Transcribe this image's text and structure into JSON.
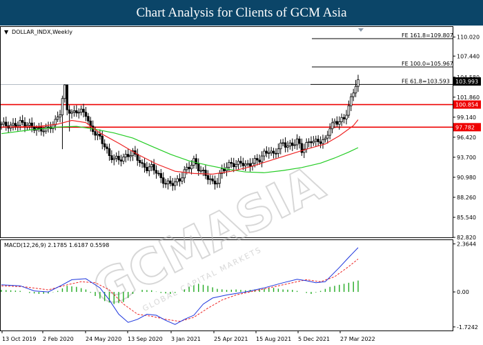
{
  "header": {
    "title": "Chart Analysis for Clients of GCM Asia"
  },
  "watermark": {
    "brand": "GCMASIA",
    "tagline": "GLOBAL CAPITAL MARKETS"
  },
  "chart_data": [
    {
      "type": "candlestick",
      "symbol_label": "DOLLAR_INDX,Weekly",
      "ylim": [
        82.82,
        111.4
      ],
      "y_ticks": [
        "110.020",
        "107.440",
        "104.580",
        "101.860",
        "99.140",
        "96.420",
        "93.700",
        "90.980",
        "88.260",
        "85.540",
        "82.820"
      ],
      "x_labels": [
        "13 Oct 2019",
        "2 Feb 2020",
        "24 May 2020",
        "13 Sep 2020",
        "3 Jan 2021",
        "25 Apr 2021",
        "15 Aug 2021",
        "5 Dec 2021",
        "27 Mar 2022"
      ],
      "last_price": "103.993",
      "close_path": [
        [
          0,
          98.2
        ],
        [
          4,
          97.9
        ],
        [
          8,
          98.4
        ],
        [
          12,
          98.0
        ],
        [
          16,
          97.4
        ],
        [
          20,
          97.6
        ],
        [
          23,
          98.5
        ],
        [
          25,
          99.8
        ],
        [
          26,
          101.6
        ],
        [
          27,
          103.2
        ],
        [
          28,
          100.3
        ],
        [
          30,
          99.6
        ],
        [
          32,
          100.0
        ],
        [
          34,
          99.9
        ],
        [
          36,
          99.6
        ],
        [
          38,
          97.6
        ],
        [
          40,
          97.0
        ],
        [
          42,
          96.3
        ],
        [
          44,
          95.3
        ],
        [
          46,
          93.8
        ],
        [
          48,
          93.6
        ],
        [
          50,
          93.4
        ],
        [
          52,
          93.6
        ],
        [
          54,
          94.0
        ],
        [
          56,
          94.3
        ],
        [
          58,
          93.6
        ],
        [
          60,
          92.5
        ],
        [
          62,
          92.2
        ],
        [
          64,
          92.4
        ],
        [
          66,
          91.8
        ],
        [
          68,
          90.7
        ],
        [
          70,
          90.2
        ],
        [
          72,
          90.1
        ],
        [
          74,
          90.3
        ],
        [
          76,
          90.6
        ],
        [
          78,
          91.8
        ],
        [
          80,
          92.4
        ],
        [
          82,
          93.2
        ],
        [
          84,
          92.2
        ],
        [
          86,
          91.6
        ],
        [
          88,
          91.0
        ],
        [
          90,
          90.2
        ],
        [
          92,
          90.4
        ],
        [
          94,
          92.0
        ],
        [
          96,
          92.4
        ],
        [
          98,
          92.9
        ],
        [
          100,
          92.6
        ],
        [
          102,
          93.1
        ],
        [
          104,
          92.5
        ],
        [
          106,
          92.8
        ],
        [
          108,
          93.2
        ],
        [
          110,
          93.4
        ],
        [
          112,
          94.2
        ],
        [
          114,
          94.6
        ],
        [
          116,
          94.0
        ],
        [
          118,
          95.0
        ],
        [
          120,
          95.6
        ],
        [
          122,
          95.2
        ],
        [
          124,
          95.4
        ],
        [
          126,
          96.0
        ],
        [
          128,
          94.6
        ],
        [
          130,
          95.4
        ],
        [
          132,
          96.0
        ],
        [
          134,
          95.8
        ],
        [
          136,
          95.9
        ],
        [
          138,
          96.0
        ],
        [
          140,
          97.8
        ],
        [
          142,
          98.4
        ],
        [
          144,
          98.6
        ],
        [
          146,
          98.9
        ],
        [
          148,
          100.6
        ],
        [
          150,
          102.6
        ],
        [
          151,
          103.6
        ],
        [
          152,
          103.99
        ]
      ],
      "high_spikes": [
        [
          27,
          103.6
        ],
        [
          28,
          103.0
        ],
        [
          151,
          104.2
        ]
      ],
      "low_spikes": [
        [
          26,
          94.8
        ],
        [
          29,
          97.2
        ]
      ],
      "ma_red": [
        [
          0,
          97.8
        ],
        [
          16,
          97.9
        ],
        [
          24,
          98.2
        ],
        [
          30,
          98.7
        ],
        [
          36,
          98.4
        ],
        [
          42,
          97.0
        ],
        [
          50,
          95.6
        ],
        [
          58,
          94.1
        ],
        [
          66,
          92.8
        ],
        [
          74,
          91.8
        ],
        [
          82,
          91.5
        ],
        [
          90,
          91.4
        ],
        [
          98,
          91.8
        ],
        [
          106,
          92.4
        ],
        [
          114,
          93.2
        ],
        [
          122,
          94.0
        ],
        [
          130,
          94.8
        ],
        [
          138,
          95.5
        ],
        [
          144,
          96.6
        ],
        [
          150,
          98.0
        ],
        [
          152,
          98.8
        ]
      ],
      "ma_green": [
        [
          0,
          96.9
        ],
        [
          12,
          97.4
        ],
        [
          24,
          97.8
        ],
        [
          32,
          97.9
        ],
        [
          40,
          97.5
        ],
        [
          48,
          97.0
        ],
        [
          56,
          96.3
        ],
        [
          64,
          95.2
        ],
        [
          72,
          94.1
        ],
        [
          80,
          93.2
        ],
        [
          88,
          92.6
        ],
        [
          96,
          92.1
        ],
        [
          104,
          91.7
        ],
        [
          112,
          91.6
        ],
        [
          120,
          91.9
        ],
        [
          128,
          92.3
        ],
        [
          136,
          92.9
        ],
        [
          142,
          93.6
        ],
        [
          148,
          94.4
        ],
        [
          152,
          95.0
        ]
      ],
      "levels": [
        {
          "label": "FE 161.8=109.807",
          "value": 109.807,
          "color": "#000000"
        },
        {
          "label": "FE 100.0=105.967",
          "value": 105.967,
          "color": "#000000"
        },
        {
          "label": "FE 61.8=103.593",
          "value": 103.593,
          "color": "#000000"
        },
        {
          "label": "100.854",
          "value": 100.854,
          "color": "#ee0000"
        },
        {
          "label": "97.782",
          "value": 97.782,
          "color": "#ee0000"
        }
      ]
    },
    {
      "type": "macd",
      "label": "MACD(12,26,9) 2.1785 1.6187 0.5598",
      "ylim": [
        -1.9,
        2.55
      ],
      "y_ticks": [
        "2.3644",
        "0.00",
        "-1.7242"
      ],
      "macd_line": [
        [
          0,
          0.35
        ],
        [
          8,
          0.3
        ],
        [
          14,
          0.05
        ],
        [
          20,
          0.0
        ],
        [
          26,
          0.35
        ],
        [
          30,
          0.6
        ],
        [
          36,
          0.65
        ],
        [
          42,
          0.2
        ],
        [
          46,
          -0.4
        ],
        [
          50,
          -1.1
        ],
        [
          54,
          -1.5
        ],
        [
          58,
          -1.35
        ],
        [
          62,
          -1.1
        ],
        [
          66,
          -1.15
        ],
        [
          70,
          -1.4
        ],
        [
          74,
          -1.6
        ],
        [
          78,
          -1.35
        ],
        [
          82,
          -1.15
        ],
        [
          86,
          -0.6
        ],
        [
          90,
          -0.3
        ],
        [
          96,
          -0.15
        ],
        [
          104,
          0.0
        ],
        [
          112,
          0.2
        ],
        [
          120,
          0.45
        ],
        [
          126,
          0.62
        ],
        [
          130,
          0.55
        ],
        [
          134,
          0.45
        ],
        [
          138,
          0.5
        ],
        [
          144,
          1.2
        ],
        [
          148,
          1.7
        ],
        [
          152,
          2.18
        ]
      ],
      "signal_line": [
        [
          0,
          0.3
        ],
        [
          10,
          0.25
        ],
        [
          20,
          0.1
        ],
        [
          28,
          0.35
        ],
        [
          34,
          0.5
        ],
        [
          40,
          0.45
        ],
        [
          46,
          0.1
        ],
        [
          52,
          -0.6
        ],
        [
          58,
          -1.1
        ],
        [
          64,
          -1.2
        ],
        [
          70,
          -1.35
        ],
        [
          76,
          -1.45
        ],
        [
          82,
          -1.25
        ],
        [
          88,
          -0.8
        ],
        [
          94,
          -0.4
        ],
        [
          100,
          -0.15
        ],
        [
          108,
          0.05
        ],
        [
          116,
          0.25
        ],
        [
          124,
          0.45
        ],
        [
          130,
          0.6
        ],
        [
          136,
          0.5
        ],
        [
          142,
          0.75
        ],
        [
          148,
          1.25
        ],
        [
          152,
          1.62
        ]
      ],
      "histogram": [
        [
          0,
          0.1
        ],
        [
          4,
          0.08
        ],
        [
          8,
          0.05
        ],
        [
          12,
          -0.05
        ],
        [
          16,
          -0.1
        ],
        [
          20,
          -0.08
        ],
        [
          24,
          0.05
        ],
        [
          28,
          0.3
        ],
        [
          32,
          0.25
        ],
        [
          36,
          0.12
        ],
        [
          40,
          -0.2
        ],
        [
          44,
          -0.45
        ],
        [
          48,
          -0.6
        ],
        [
          52,
          -0.5
        ],
        [
          56,
          -0.1
        ],
        [
          60,
          0.1
        ],
        [
          64,
          0.08
        ],
        [
          68,
          -0.05
        ],
        [
          72,
          -0.1
        ],
        [
          76,
          0.0
        ],
        [
          80,
          0.25
        ],
        [
          84,
          0.4
        ],
        [
          88,
          0.3
        ],
        [
          92,
          0.15
        ],
        [
          96,
          0.1
        ],
        [
          100,
          0.12
        ],
        [
          104,
          0.08
        ],
        [
          108,
          0.12
        ],
        [
          112,
          0.15
        ],
        [
          116,
          0.2
        ],
        [
          120,
          0.12
        ],
        [
          124,
          0.1
        ],
        [
          128,
          0.0
        ],
        [
          132,
          -0.1
        ],
        [
          136,
          0.05
        ],
        [
          140,
          0.25
        ],
        [
          144,
          0.35
        ],
        [
          148,
          0.45
        ],
        [
          152,
          0.56
        ]
      ]
    }
  ]
}
